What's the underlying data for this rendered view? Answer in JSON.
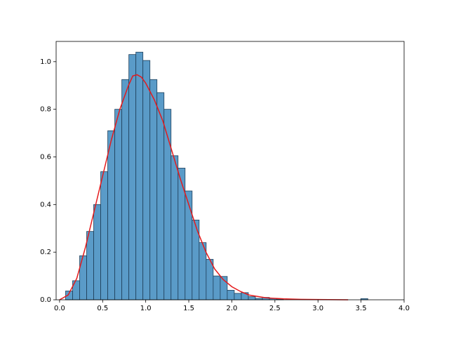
{
  "chart_data": {
    "type": "histogram",
    "bins": [
      0.07,
      0.1516,
      0.2332,
      0.3148,
      0.3964,
      0.478,
      0.5596,
      0.6412,
      0.7228,
      0.8044,
      0.886,
      0.9676,
      1.0492,
      1.1308,
      1.2124,
      1.294,
      1.3756,
      1.4572,
      1.5388,
      1.6204,
      1.702,
      1.7836,
      1.8652,
      1.9468,
      2.0284,
      2.11,
      2.1916,
      2.2732,
      2.3548,
      2.4364,
      2.518,
      2.5996,
      2.6812,
      2.7628,
      2.8444,
      2.926,
      3.0076,
      3.0892,
      3.1708,
      3.2524,
      3.334,
      3.4156,
      3.4972,
      3.5788
    ],
    "values": [
      0.037,
      0.08,
      0.185,
      0.287,
      0.4,
      0.538,
      0.71,
      0.8,
      0.925,
      1.03,
      1.04,
      1.005,
      0.925,
      0.87,
      0.8,
      0.605,
      0.553,
      0.457,
      0.335,
      0.24,
      0.17,
      0.1,
      0.098,
      0.04,
      0.027,
      0.03,
      0.013,
      0.006,
      0.01,
      0.006,
      0.003,
      0,
      0,
      0,
      0,
      0,
      0,
      0,
      0,
      0,
      0,
      0,
      0.005
    ],
    "color": "#5a9bc8",
    "edgecolor": "#1f3f5a",
    "overlay": {
      "type": "line",
      "color": "#e41a1c",
      "x": [
        0.0,
        0.1,
        0.2,
        0.3,
        0.4,
        0.5,
        0.6,
        0.7,
        0.8,
        0.85,
        0.9,
        0.95,
        1.0,
        1.1,
        1.2,
        1.3,
        1.4,
        1.5,
        1.6,
        1.7,
        1.8,
        1.9,
        2.0,
        2.1,
        2.2,
        2.4,
        2.6,
        2.8,
        3.0,
        3.35
      ],
      "values": [
        0,
        0.02,
        0.09,
        0.22,
        0.37,
        0.52,
        0.67,
        0.8,
        0.9,
        0.94,
        0.945,
        0.935,
        0.91,
        0.84,
        0.75,
        0.63,
        0.51,
        0.4,
        0.29,
        0.2,
        0.13,
        0.085,
        0.055,
        0.035,
        0.02,
        0.008,
        0.004,
        0.002,
        0.001,
        0
      ]
    },
    "xlim": [
      -0.04,
      4.0
    ],
    "ylim": [
      0,
      1.085
    ],
    "xticks": [
      {
        "value": 0,
        "label": "0.0"
      },
      {
        "value": 0.5,
        "label": "0.5"
      },
      {
        "value": 1,
        "label": "1.0"
      },
      {
        "value": 1.5,
        "label": "1.5"
      },
      {
        "value": 2,
        "label": "2.0"
      },
      {
        "value": 2.5,
        "label": "2.5"
      },
      {
        "value": 3,
        "label": "3.0"
      },
      {
        "value": 3.5,
        "label": "3.5"
      },
      {
        "value": 4,
        "label": "4.0"
      }
    ],
    "yticks": [
      {
        "value": 0,
        "label": "0.0"
      },
      {
        "value": 0.2,
        "label": "0.2"
      },
      {
        "value": 0.4,
        "label": "0.4"
      },
      {
        "value": 0.6,
        "label": "0.6"
      },
      {
        "value": 0.8,
        "label": "0.8"
      },
      {
        "value": 1,
        "label": "1.0"
      }
    ]
  }
}
